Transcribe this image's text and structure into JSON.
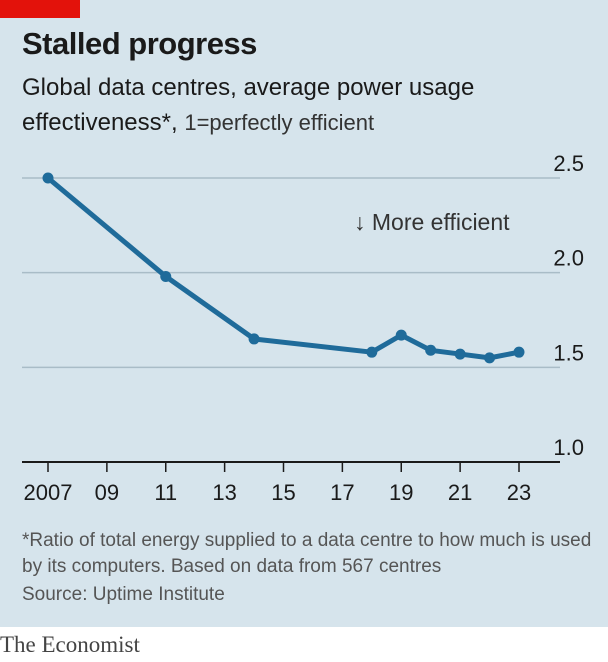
{
  "header": {
    "title": "Stalled progress",
    "subtitle_main": "Global data centres, average power usage effectiveness*,",
    "subtitle_unit": "1=perfectly efficient"
  },
  "chart_data": {
    "type": "line",
    "title": "Stalled progress",
    "subtitle": "Global data centres, average power usage effectiveness*, 1=perfectly efficient",
    "x": [
      2007,
      2011,
      2014,
      2018,
      2019,
      2020,
      2021,
      2022,
      2023
    ],
    "series": [
      {
        "values": [
          2.5,
          1.98,
          1.65,
          1.58,
          1.67,
          1.59,
          1.57,
          1.55,
          1.58
        ],
        "color": "#1f6b9a"
      }
    ],
    "xticks": [
      2007,
      2009,
      2011,
      2013,
      2015,
      2017,
      2019,
      2021,
      2023
    ],
    "xtick_labels": [
      "2007",
      "09",
      "11",
      "13",
      "15",
      "17",
      "19",
      "21",
      "23"
    ],
    "yticks": [
      1.0,
      1.5,
      2.0,
      2.5
    ],
    "ytick_labels": [
      "1.0",
      "1.5",
      "2.0",
      "2.5"
    ],
    "xlim": [
      2007,
      2023
    ],
    "ylim": [
      1.0,
      2.5
    ],
    "ytick_position": "right",
    "grid": true,
    "annotation": "↓ More efficient"
  },
  "footnote": "*Ratio of total energy supplied to a data centre to how much is used by its computers. Based on data from 567 centres",
  "source": "Source: Uptime Institute",
  "brand": "The Economist",
  "colors": {
    "background": "#d6e4ec",
    "line": "#1f6b9a",
    "accent": "#e3120b",
    "grid": "#a9bcc7"
  }
}
